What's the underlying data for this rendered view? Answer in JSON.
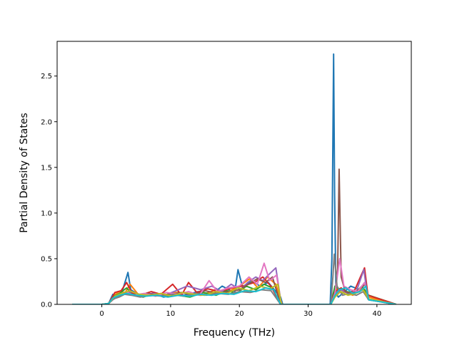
{
  "chart_data": {
    "type": "line",
    "title": "",
    "xlabel": "Frequency (THz)",
    "ylabel": "Partial Density of States",
    "xlim": [
      -6.5,
      45
    ],
    "ylim": [
      0,
      2.88
    ],
    "xticks": [
      0,
      10,
      20,
      30,
      40
    ],
    "yticks": [
      0.0,
      0.5,
      1.0,
      1.5,
      2.0,
      2.5
    ],
    "xtick_labels": [
      "0",
      "10",
      "20",
      "30",
      "40"
    ],
    "ytick_labels": [
      "0.0",
      "0.5",
      "1.0",
      "1.5",
      "2.0",
      "2.5"
    ],
    "grid": false,
    "legend": false,
    "series": [
      {
        "color": "#1f77b4",
        "x": [
          -4.3,
          0,
          1,
          1.6,
          2.1,
          3,
          3.8,
          4.2,
          5.5,
          7.5,
          9,
          10.5,
          12,
          14,
          16,
          17.5,
          18.5,
          19.3,
          19.8,
          20.5,
          21.8,
          23,
          24.2,
          25.2,
          26,
          26.3,
          33.2,
          33.45,
          33.7,
          33.85,
          34.05,
          34.4,
          35.3,
          36.2,
          37.5,
          38.3,
          38.7,
          42.8
        ],
        "y": [
          0,
          0,
          0.01,
          0.11,
          0.08,
          0.15,
          0.35,
          0.16,
          0.1,
          0.12,
          0.08,
          0.11,
          0.1,
          0.14,
          0.11,
          0.2,
          0.16,
          0.12,
          0.38,
          0.18,
          0.26,
          0.2,
          0.24,
          0.15,
          0.08,
          0,
          0,
          0.5,
          2.74,
          1.2,
          0.12,
          0.08,
          0.14,
          0.2,
          0.16,
          0.24,
          0.06,
          0
        ]
      },
      {
        "color": "#ff7f0e",
        "x": [
          -4.3,
          0,
          1,
          1.7,
          2.6,
          3.4,
          4.1,
          5.5,
          7.1,
          8.8,
          10.8,
          12.6,
          14.4,
          16.6,
          18.4,
          20.2,
          21.5,
          22.7,
          24.1,
          25.3,
          26.2,
          33.3,
          33.8,
          34.3,
          35.2,
          36.5,
          37.9,
          38.8,
          42.8
        ],
        "y": [
          0,
          0,
          0.01,
          0.1,
          0.14,
          0.13,
          0.22,
          0.09,
          0.11,
          0.1,
          0.13,
          0.12,
          0.1,
          0.16,
          0.14,
          0.21,
          0.28,
          0.18,
          0.3,
          0.22,
          0,
          0,
          0.12,
          0.18,
          0.14,
          0.1,
          0.18,
          0.08,
          0
        ]
      },
      {
        "color": "#2ca02c",
        "x": [
          -4.3,
          0,
          1,
          1.8,
          2.6,
          3.6,
          4.6,
          6,
          7.6,
          9.2,
          11,
          12.8,
          14.8,
          16.6,
          18.2,
          19.6,
          21,
          22.4,
          23.6,
          24.8,
          26,
          33.3,
          33.9,
          34.6,
          35.6,
          36.8,
          37.8,
          38.8,
          42.8
        ],
        "y": [
          0,
          0,
          0.01,
          0.09,
          0.12,
          0.18,
          0.1,
          0.08,
          0.12,
          0.09,
          0.1,
          0.08,
          0.13,
          0.1,
          0.15,
          0.12,
          0.2,
          0.16,
          0.22,
          0.18,
          0,
          0,
          0.2,
          0.16,
          0.14,
          0.12,
          0.2,
          0.1,
          0
        ]
      },
      {
        "color": "#d62728",
        "x": [
          -4.3,
          0,
          1,
          1.9,
          2.8,
          3.6,
          4.4,
          5.6,
          7.2,
          8.6,
          10.3,
          11.6,
          12.6,
          13.8,
          15.4,
          17.2,
          18.9,
          20.4,
          22.2,
          23.4,
          24.6,
          26,
          33.3,
          33.9,
          34.8,
          35.8,
          36.8,
          37.6,
          38.2,
          38.7,
          42.8
        ],
        "y": [
          0,
          0,
          0.01,
          0.13,
          0.15,
          0.24,
          0.12,
          0.1,
          0.14,
          0.11,
          0.22,
          0.1,
          0.24,
          0.13,
          0.17,
          0.14,
          0.18,
          0.2,
          0.24,
          0.3,
          0.2,
          0,
          0,
          0.14,
          0.18,
          0.12,
          0.16,
          0.3,
          0.4,
          0.1,
          0
        ]
      },
      {
        "color": "#9467bd",
        "x": [
          -4.3,
          0,
          1,
          1.6,
          2.4,
          3.2,
          4.4,
          5.8,
          7.4,
          9.2,
          10.8,
          12.4,
          13.4,
          14.4,
          16,
          17.4,
          18.8,
          20.2,
          21.2,
          22.4,
          23.4,
          24.6,
          25.3,
          26.1,
          33.3,
          33.9,
          34.8,
          35.8,
          37,
          38.1,
          38.7,
          42.8
        ],
        "y": [
          0,
          0,
          0.01,
          0.05,
          0.09,
          0.12,
          0.14,
          0.1,
          0.12,
          0.1,
          0.15,
          0.2,
          0.18,
          0.16,
          0.2,
          0.14,
          0.22,
          0.16,
          0.24,
          0.3,
          0.26,
          0.35,
          0.4,
          0,
          0,
          0.1,
          0.16,
          0.12,
          0.14,
          0.38,
          0.06,
          0
        ]
      },
      {
        "color": "#8c564b",
        "x": [
          -4.3,
          0,
          1,
          1.9,
          2.8,
          3.8,
          5.2,
          6.6,
          8.2,
          10,
          11.6,
          13.2,
          15,
          16.8,
          18.4,
          20,
          21.3,
          22.6,
          23.8,
          24.8,
          26,
          33.3,
          33.9,
          34.3,
          34.5,
          34.8,
          35.4,
          36.4,
          37.4,
          38.3,
          38.8,
          42.8
        ],
        "y": [
          0,
          0,
          0.01,
          0.08,
          0.1,
          0.13,
          0.09,
          0.12,
          0.1,
          0.11,
          0.13,
          0.1,
          0.15,
          0.12,
          0.14,
          0.16,
          0.22,
          0.28,
          0.24,
          0.3,
          0,
          0,
          0.1,
          0.4,
          1.48,
          0.3,
          0.14,
          0.12,
          0.16,
          0.22,
          0.05,
          0
        ]
      },
      {
        "color": "#e377c2",
        "x": [
          -4.3,
          0,
          1,
          1.8,
          2.6,
          3.5,
          4.6,
          6.2,
          7.8,
          9.4,
          11,
          12.6,
          14.2,
          15.6,
          16.8,
          18.4,
          20,
          21.4,
          22.6,
          23.6,
          24.4,
          25.4,
          26.1,
          33.3,
          33.9,
          34.6,
          35.2,
          36.2,
          37.2,
          38.2,
          38.8,
          42.8
        ],
        "y": [
          0,
          0,
          0.01,
          0.07,
          0.11,
          0.14,
          0.1,
          0.12,
          0.09,
          0.13,
          0.11,
          0.14,
          0.1,
          0.26,
          0.14,
          0.18,
          0.2,
          0.3,
          0.22,
          0.45,
          0.26,
          0.32,
          0,
          0,
          0.12,
          0.5,
          0.2,
          0.16,
          0.14,
          0.24,
          0.06,
          0
        ]
      },
      {
        "color": "#7f7f7f",
        "x": [
          -4.3,
          0,
          1,
          1.7,
          2.5,
          3.3,
          4.3,
          5.6,
          7.2,
          8.8,
          10.4,
          12,
          13.6,
          15.2,
          16.8,
          18.4,
          20,
          21.6,
          23.2,
          24.6,
          26,
          33.3,
          33.6,
          33.8,
          34.2,
          35,
          36,
          37,
          38,
          38.8,
          42.8
        ],
        "y": [
          0,
          0,
          0.01,
          0.06,
          0.08,
          0.11,
          0.1,
          0.08,
          0.1,
          0.09,
          0.11,
          0.09,
          0.12,
          0.1,
          0.12,
          0.11,
          0.14,
          0.13,
          0.16,
          0.15,
          0,
          0,
          0.3,
          0.55,
          0.2,
          0.1,
          0.12,
          0.1,
          0.14,
          0.05,
          0
        ]
      },
      {
        "color": "#bcbd22",
        "x": [
          -4.3,
          0,
          1,
          1.9,
          2.9,
          4,
          5.4,
          7,
          8.6,
          10.2,
          11.8,
          13.4,
          15,
          16.6,
          18.2,
          19.8,
          21.4,
          23,
          24.4,
          25.6,
          26.1,
          33.3,
          33.9,
          34.7,
          35.8,
          36.9,
          38,
          38.8,
          42.8
        ],
        "y": [
          0,
          0,
          0.01,
          0.09,
          0.12,
          0.15,
          0.11,
          0.1,
          0.12,
          0.09,
          0.13,
          0.11,
          0.1,
          0.14,
          0.12,
          0.18,
          0.15,
          0.2,
          0.17,
          0.22,
          0,
          0,
          0.08,
          0.14,
          0.1,
          0.12,
          0.16,
          0.06,
          0
        ]
      },
      {
        "color": "#17becf",
        "x": [
          -4.3,
          0,
          1,
          1.6,
          2.6,
          3.6,
          5,
          6.4,
          8,
          9.6,
          11.2,
          12.8,
          14.4,
          16,
          17.6,
          19.2,
          20.8,
          22.4,
          23.8,
          25,
          26,
          33.3,
          33.9,
          34.5,
          35.5,
          36.5,
          37.5,
          38.4,
          38.8,
          42.8
        ],
        "y": [
          0,
          0,
          0.01,
          0.07,
          0.1,
          0.12,
          0.1,
          0.09,
          0.1,
          0.08,
          0.1,
          0.09,
          0.11,
          0.1,
          0.12,
          0.11,
          0.15,
          0.14,
          0.18,
          0.16,
          0,
          0,
          0.1,
          0.16,
          0.18,
          0.12,
          0.14,
          0.2,
          0.05,
          0
        ]
      }
    ]
  }
}
